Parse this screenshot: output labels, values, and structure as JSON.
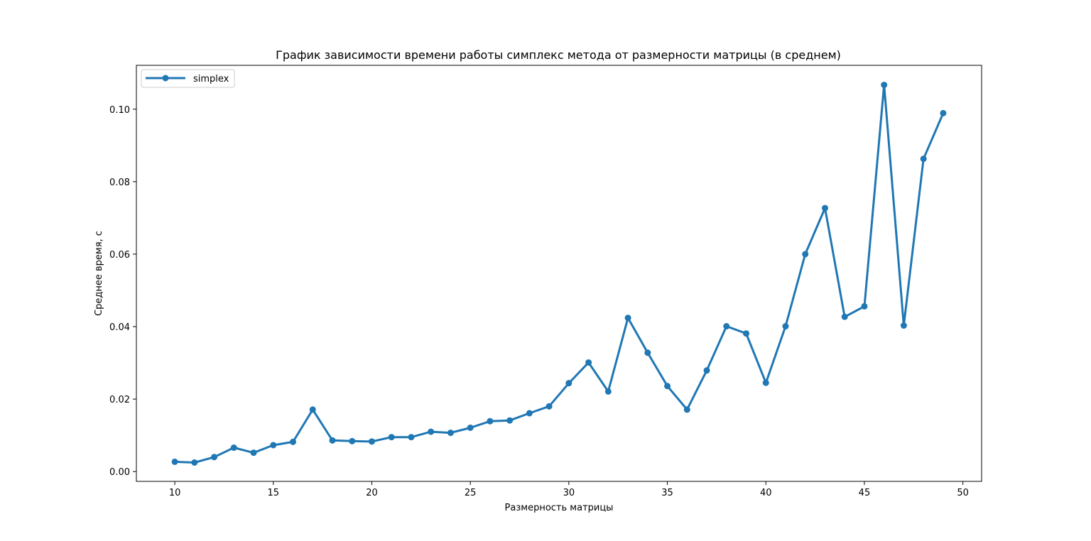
{
  "chart_data": {
    "type": "line",
    "title": "График зависимости времени работы симплекс метода от размерности матрицы (в среднем)",
    "xlabel": "Размерность матрицы",
    "ylabel": "Среднее время, с",
    "xlim": [
      8.05,
      50.95
    ],
    "ylim": [
      -0.0027,
      0.1121
    ],
    "xticks": [
      10,
      15,
      20,
      25,
      30,
      35,
      40,
      45,
      50
    ],
    "yticks": [
      0.0,
      0.02,
      0.04,
      0.06,
      0.08,
      0.1
    ],
    "ytick_labels": [
      "0.00",
      "0.02",
      "0.04",
      "0.06",
      "0.08",
      "0.10"
    ],
    "grid": false,
    "legend_position": "upper left",
    "series": [
      {
        "name": "simplex",
        "color": "#1f77b4",
        "marker": "circle",
        "x": [
          10,
          11,
          12,
          13,
          14,
          15,
          16,
          17,
          18,
          19,
          20,
          21,
          22,
          23,
          24,
          25,
          26,
          27,
          28,
          29,
          30,
          31,
          32,
          33,
          34,
          35,
          36,
          37,
          38,
          39,
          40,
          41,
          42,
          43,
          44,
          45,
          46,
          47,
          48,
          49
        ],
        "y": [
          0.0027,
          0.0025,
          0.004,
          0.0066,
          0.0052,
          0.0073,
          0.0082,
          0.0171,
          0.0086,
          0.0084,
          0.0083,
          0.0095,
          0.0095,
          0.011,
          0.0107,
          0.0121,
          0.0139,
          0.0141,
          0.0161,
          0.018,
          0.0244,
          0.0301,
          0.0221,
          0.0424,
          0.0328,
          0.0236,
          0.0171,
          0.0279,
          0.0401,
          0.0381,
          0.0245,
          0.0401,
          0.06,
          0.0727,
          0.0427,
          0.0456,
          0.1067,
          0.0403,
          0.0863,
          0.0989
        ]
      }
    ]
  }
}
